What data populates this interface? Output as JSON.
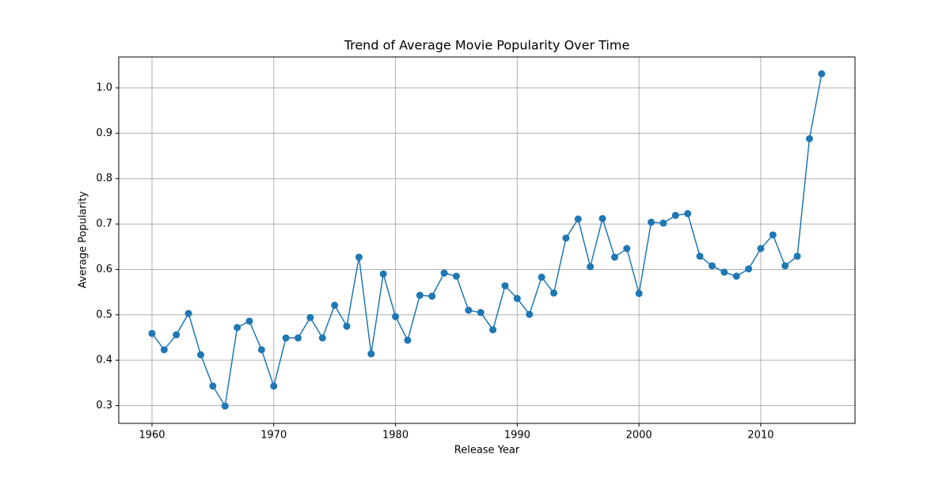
{
  "chart_data": {
    "type": "line",
    "title": "Trend of Average Movie Popularity Over Time",
    "x_label": "Release Year",
    "y_label": "Average Popularity",
    "x": [
      1960,
      1961,
      1962,
      1963,
      1964,
      1965,
      1966,
      1967,
      1968,
      1969,
      1970,
      1971,
      1972,
      1973,
      1974,
      1975,
      1976,
      1977,
      1978,
      1979,
      1980,
      1981,
      1982,
      1983,
      1984,
      1985,
      1986,
      1987,
      1988,
      1989,
      1990,
      1991,
      1992,
      1993,
      1994,
      1995,
      1996,
      1997,
      1998,
      1999,
      2000,
      2001,
      2002,
      2003,
      2004,
      2005,
      2006,
      2007,
      2008,
      2009,
      2010,
      2011,
      2012,
      2013,
      2014,
      2015
    ],
    "series": [
      {
        "color": "#1f77b4",
        "values": [
          0.459,
          0.423,
          0.456,
          0.503,
          0.412,
          0.343,
          0.299,
          0.472,
          0.486,
          0.423,
          0.343,
          0.449,
          0.449,
          0.494,
          0.449,
          0.521,
          0.475,
          0.627,
          0.414,
          0.59,
          0.496,
          0.444,
          0.543,
          0.541,
          0.592,
          0.585,
          0.51,
          0.505,
          0.467,
          0.564,
          0.536,
          0.501,
          0.583,
          0.548,
          0.669,
          0.711,
          0.606,
          0.712,
          0.627,
          0.646,
          0.547,
          0.704,
          0.702,
          0.719,
          0.723,
          0.629,
          0.608,
          0.594,
          0.585,
          0.601,
          0.646,
          0.676,
          0.608,
          0.629,
          0.888,
          1.031
        ]
      }
    ],
    "xlim": [
      1957.27,
      2017.74
    ],
    "ylim": [
      0.2608,
      1.068
    ],
    "xticks": [
      1960,
      1970,
      1980,
      1990,
      2000,
      2010
    ],
    "yticks": [
      0.3,
      0.4,
      0.5,
      0.6,
      0.7,
      0.8,
      0.9,
      {
        "value": 1,
        "label": "1.0"
      }
    ],
    "grid": true
  }
}
